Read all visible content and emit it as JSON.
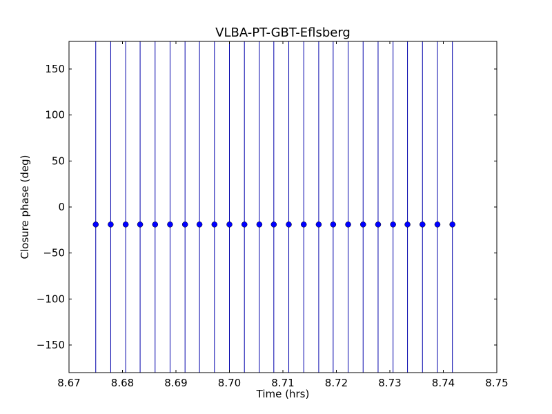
{
  "chart_data": {
    "type": "scatter",
    "title": "VLBA-PT-GBT-Eflsberg",
    "xlabel": "Time (hrs)",
    "ylabel": "Closure phase (deg)",
    "xlim": [
      8.67,
      8.75
    ],
    "ylim": [
      -180,
      180
    ],
    "xticks": [
      8.67,
      8.68,
      8.69,
      8.7,
      8.71,
      8.72,
      8.73,
      8.74,
      8.75
    ],
    "xtick_labels": [
      "8.67",
      "8.68",
      "8.69",
      "8.70",
      "8.71",
      "8.72",
      "8.73",
      "8.74",
      "8.75"
    ],
    "yticks": [
      150,
      100,
      50,
      0,
      -50,
      -100,
      -150
    ],
    "ytick_labels": [
      "150",
      "100",
      "50",
      "0",
      "−50",
      "−100",
      "−150"
    ],
    "grid": false,
    "series": [
      {
        "x": [
          8.675,
          8.6778,
          8.6806,
          8.6833,
          8.6861,
          8.6889,
          8.6917,
          8.6944,
          8.6972,
          8.7,
          8.7028,
          8.7056,
          8.7083,
          8.7111,
          8.7139,
          8.7167,
          8.7194,
          8.7222,
          8.725,
          8.7278,
          8.7306,
          8.7333,
          8.7361,
          8.7389,
          8.7417
        ],
        "y": [
          -19,
          -19,
          -19,
          -19,
          -19,
          -19,
          -19,
          -19,
          -19,
          -19,
          -19,
          -19,
          -19,
          -19,
          -19,
          -19,
          -19,
          -19,
          -19,
          -19,
          -19,
          -19,
          -19,
          -19,
          -19
        ],
        "yerr_low": -180,
        "yerr_high": 180
      }
    ],
    "colors": {
      "series": "#0000ff",
      "errorbar": "#0000aa",
      "axes": "#000000"
    }
  }
}
